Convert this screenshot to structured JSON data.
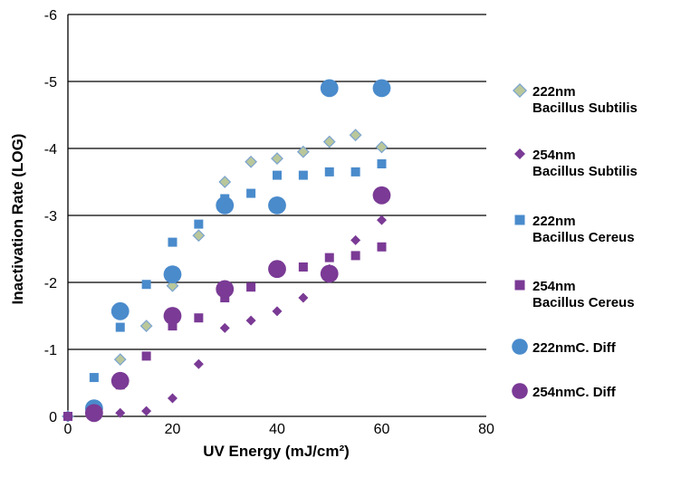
{
  "chart_data": {
    "type": "scatter",
    "title": "",
    "xlabel": "UV Energy (mJ/cm²)",
    "ylabel": "Inactivation Rate (LOG)",
    "xlim": [
      0,
      80
    ],
    "ylim": [
      -6,
      0
    ],
    "y_inverted": true,
    "xticks": [
      "0",
      "20",
      "40",
      "60",
      "80"
    ],
    "yticks": [
      "-6",
      "-5",
      "-4",
      "-3",
      "-2",
      "-1",
      "0"
    ],
    "grid": "horizontal",
    "legend_position": "right",
    "series": [
      {
        "name": "222nm Bacillus Subtilis",
        "legend_lines": [
          "222nm",
          "Bacillus Subtilis"
        ],
        "marker": "diamond-outline",
        "color": "#b9c79a",
        "stroke": "#7ba3cf",
        "points": [
          [
            0,
            0
          ],
          [
            5,
            -0.15
          ],
          [
            10,
            -0.85
          ],
          [
            15,
            -1.35
          ],
          [
            20,
            -1.95
          ],
          [
            25,
            -2.7
          ],
          [
            30,
            -3.5
          ],
          [
            35,
            -3.8
          ],
          [
            40,
            -3.85
          ],
          [
            45,
            -3.95
          ],
          [
            50,
            -4.1
          ],
          [
            55,
            -4.2
          ],
          [
            60,
            -4.02
          ]
        ]
      },
      {
        "name": "254nm Bacillus Subtilis",
        "legend_lines": [
          "254nm",
          "Bacillus Subtilis"
        ],
        "marker": "diamond",
        "color": "#7a3a95",
        "points": [
          [
            0,
            0
          ],
          [
            5,
            -0.02
          ],
          [
            10,
            -0.05
          ],
          [
            15,
            -0.08
          ],
          [
            20,
            -0.27
          ],
          [
            25,
            -0.78
          ],
          [
            30,
            -1.32
          ],
          [
            35,
            -1.43
          ],
          [
            40,
            -1.57
          ],
          [
            45,
            -1.77
          ],
          [
            50,
            -2.2
          ],
          [
            55,
            -2.63
          ],
          [
            60,
            -2.93
          ]
        ]
      },
      {
        "name": "222nm Bacillus Cereus",
        "legend_lines": [
          "222nm",
          "Bacillus Cereus"
        ],
        "marker": "square",
        "color": "#4a8bcc",
        "points": [
          [
            0,
            0
          ],
          [
            5,
            -0.58
          ],
          [
            10,
            -1.33
          ],
          [
            15,
            -1.97
          ],
          [
            20,
            -2.6
          ],
          [
            25,
            -2.87
          ],
          [
            30,
            -3.25
          ],
          [
            35,
            -3.33
          ],
          [
            40,
            -3.6
          ],
          [
            45,
            -3.6
          ],
          [
            50,
            -3.65
          ],
          [
            55,
            -3.65
          ],
          [
            60,
            -3.77
          ]
        ]
      },
      {
        "name": "254nm Bacillus Cereus",
        "legend_lines": [
          "254nm",
          "Bacillus Cereus"
        ],
        "marker": "square",
        "color": "#7a3a95",
        "points": [
          [
            0,
            0
          ],
          [
            5,
            -0.1
          ],
          [
            10,
            -0.47
          ],
          [
            15,
            -0.9
          ],
          [
            20,
            -1.35
          ],
          [
            25,
            -1.47
          ],
          [
            30,
            -1.77
          ],
          [
            35,
            -1.93
          ],
          [
            40,
            -2.17
          ],
          [
            45,
            -2.23
          ],
          [
            50,
            -2.37
          ],
          [
            55,
            -2.4
          ],
          [
            60,
            -2.53
          ]
        ]
      },
      {
        "name": "222nmC. Diff",
        "legend_lines": [
          "222nmC. Diff"
        ],
        "marker": "circle",
        "color": "#4a8bcc",
        "points": [
          [
            5,
            -0.12
          ],
          [
            10,
            -1.57
          ],
          [
            20,
            -2.12
          ],
          [
            30,
            -3.15
          ],
          [
            40,
            -3.15
          ],
          [
            50,
            -4.9
          ],
          [
            60,
            -4.9
          ]
        ]
      },
      {
        "name": "254nmC. Diff",
        "legend_lines": [
          "254nmC. Diff"
        ],
        "marker": "circle",
        "color": "#7a3a95",
        "points": [
          [
            5,
            -0.05
          ],
          [
            10,
            -0.53
          ],
          [
            20,
            -1.5
          ],
          [
            30,
            -1.9
          ],
          [
            40,
            -2.2
          ],
          [
            50,
            -2.13
          ],
          [
            60,
            -3.3
          ]
        ]
      }
    ]
  }
}
